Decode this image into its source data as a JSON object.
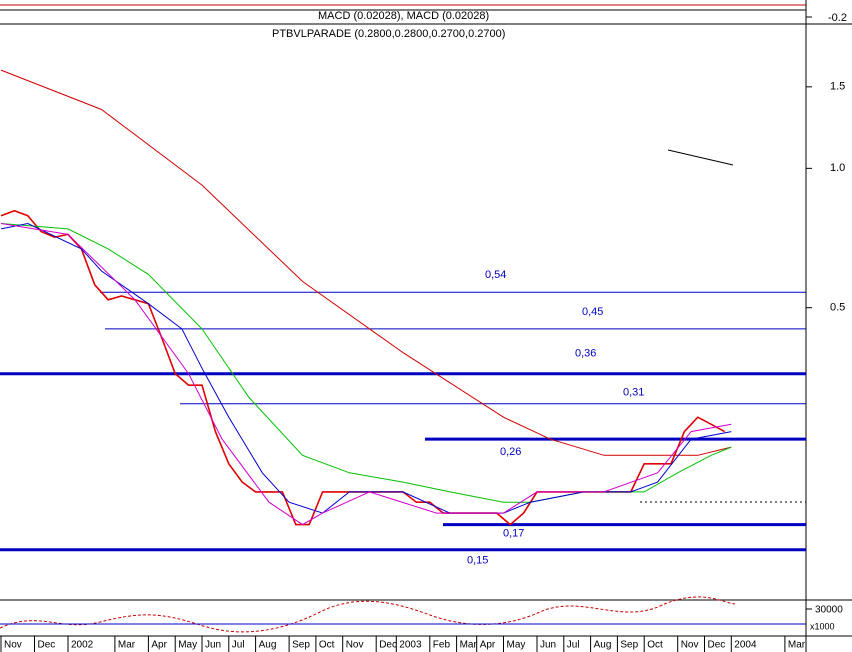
{
  "chart_data": {
    "type": "line",
    "title": "PTBVLPARADE (0.2800,0.2800,0.2700,0.2700)",
    "subtitle": "MACD (0.02028), MACD (0.02028)",
    "log_scale": true,
    "ylim": [
      0.118,
      2.04
    ],
    "yticks": [
      0.5,
      {
        "value": 1,
        "label": "1.0"
      },
      1.5
    ],
    "xlim": [
      0,
      120
    ],
    "xticks": [
      {
        "value": 0,
        "label": "Nov"
      },
      {
        "value": 5,
        "label": "Dec"
      },
      {
        "value": 10,
        "label": "2002"
      },
      {
        "value": 17,
        "label": "Mar"
      },
      {
        "value": 22,
        "label": "Apr"
      },
      {
        "value": 26,
        "label": "May"
      },
      {
        "value": 30,
        "label": "Jun"
      },
      {
        "value": 34,
        "label": "Jul"
      },
      {
        "value": 38,
        "label": "Aug"
      },
      {
        "value": 43,
        "label": "Sep"
      },
      {
        "value": 47,
        "label": "Oct"
      },
      {
        "value": 51,
        "label": "Nov"
      },
      {
        "value": 56,
        "label": "Dec"
      },
      {
        "value": 59,
        "label": "2003"
      },
      {
        "value": 64,
        "label": "Feb"
      },
      {
        "value": 68,
        "label": "Mar"
      },
      {
        "value": 71,
        "label": "Apr"
      },
      {
        "value": 75,
        "label": "May"
      },
      {
        "value": 80,
        "label": "Jun"
      },
      {
        "value": 84,
        "label": "Jul"
      },
      {
        "value": 88,
        "label": "Aug"
      },
      {
        "value": 92,
        "label": "Sep"
      },
      {
        "value": 96,
        "label": "Oct"
      },
      {
        "value": 101,
        "label": "Nov"
      },
      {
        "value": 105,
        "label": "Dec"
      },
      {
        "value": 109,
        "label": "2004"
      },
      {
        "value": 117,
        "label": "Mar"
      }
    ],
    "series": [
      {
        "color": "#e00000",
        "x": [
          0,
          2,
          4,
          6,
          8,
          10,
          12,
          14,
          16,
          18,
          20,
          22,
          24,
          26,
          28,
          30,
          32,
          34,
          36,
          38,
          40,
          42,
          44,
          46,
          48,
          50,
          52,
          54,
          56,
          58,
          60,
          62,
          64,
          66,
          68,
          70,
          72,
          74,
          76,
          78,
          80,
          82,
          84,
          86,
          88,
          90,
          92,
          94,
          96,
          98,
          100,
          102,
          104,
          106,
          108
        ],
        "values": [
          0.79,
          0.81,
          0.79,
          0.73,
          0.71,
          0.72,
          0.67,
          0.56,
          0.52,
          0.53,
          0.52,
          0.51,
          0.43,
          0.36,
          0.34,
          0.34,
          0.27,
          0.23,
          0.21,
          0.2,
          0.2,
          0.2,
          0.17,
          0.17,
          0.2,
          0.2,
          0.2,
          0.2,
          0.2,
          0.2,
          0.2,
          0.19,
          0.19,
          0.18,
          0.18,
          0.18,
          0.18,
          0.18,
          0.17,
          0.18,
          0.2,
          0.2,
          0.2,
          0.2,
          0.2,
          0.2,
          0.2,
          0.2,
          0.23,
          0.23,
          0.23,
          0.27,
          0.29,
          0.28,
          0.27
        ]
      },
      {
        "color": "#d00000",
        "x": [
          0,
          15,
          30,
          45,
          60,
          75,
          82,
          90,
          97,
          104,
          109
        ],
        "values": [
          1.63,
          1.34,
          0.92,
          0.57,
          0.4,
          0.29,
          0.26,
          0.24,
          0.24,
          0.24,
          0.25
        ]
      },
      {
        "color": "#00c000",
        "x": [
          0,
          10,
          16,
          22,
          30,
          37,
          45,
          52,
          60,
          67,
          75,
          79,
          87,
          96,
          101,
          106,
          109
        ],
        "values": [
          0.76,
          0.74,
          0.67,
          0.59,
          0.45,
          0.32,
          0.24,
          0.22,
          0.21,
          0.2,
          0.19,
          0.19,
          0.2,
          0.2,
          0.22,
          0.24,
          0.25
        ]
      },
      {
        "color": "#0000d0",
        "x": [
          0,
          4,
          12,
          15,
          22,
          27,
          30,
          34,
          39,
          43,
          48,
          52,
          60,
          67,
          75,
          79,
          87,
          94,
          98,
          103,
          109
        ],
        "values": [
          0.74,
          0.76,
          0.67,
          0.6,
          0.51,
          0.45,
          0.37,
          0.29,
          0.22,
          0.19,
          0.18,
          0.2,
          0.2,
          0.18,
          0.18,
          0.19,
          0.2,
          0.2,
          0.21,
          0.26,
          0.27
        ]
      },
      {
        "color": "#d000d0",
        "x": [
          0,
          10,
          20,
          28,
          33,
          40,
          45,
          48,
          55,
          65,
          75,
          80,
          90,
          98,
          103,
          109
        ],
        "values": [
          0.76,
          0.72,
          0.52,
          0.36,
          0.26,
          0.19,
          0.17,
          0.18,
          0.2,
          0.18,
          0.18,
          0.2,
          0.2,
          0.22,
          0.27,
          0.28
        ]
      }
    ],
    "levels": [
      {
        "value": 0.54,
        "label": "0,54"
      },
      {
        "value": 0.45,
        "label": "0,45"
      },
      {
        "value": 0.36,
        "label": "0,36"
      },
      {
        "value": 0.31,
        "label": "0,31"
      },
      {
        "value": 0.26,
        "label": "0,26"
      },
      {
        "value": 0.17,
        "label": "0,17"
      },
      {
        "value": 0.15,
        "label": "0,15"
      }
    ],
    "level_color": "#0000c0",
    "macd_yticks": [
      -0.2
    ],
    "volume_yticks": [
      30000
    ],
    "volume_unit": "x1000"
  }
}
